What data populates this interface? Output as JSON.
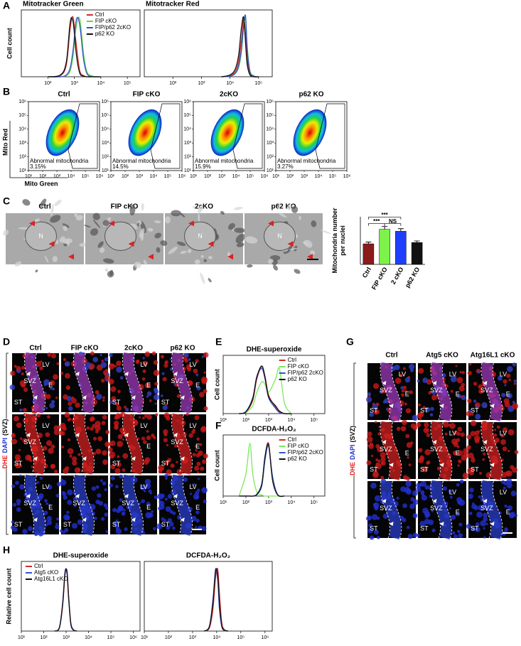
{
  "figure": {
    "panel_letters": [
      "A",
      "B",
      "C",
      "D",
      "E",
      "F",
      "G",
      "H"
    ],
    "flow_axis_labels": {
      "y": "Mito Red",
      "x": "Mito Green"
    },
    "em": {
      "titles": [
        "Ctrl",
        "FIP cKO",
        "2cKO",
        "p62 KO"
      ],
      "labels": [
        [
          "N"
        ],
        [],
        [
          "N"
        ],
        [
          "N"
        ]
      ]
    },
    "d": {
      "titles": [
        "Ctrl",
        "FIP cKO",
        "2cKO",
        "p62 KO"
      ],
      "side_label": [
        "DHE",
        "DAPI",
        "(SVZ)"
      ],
      "regions": [
        [
          [
            "LV",
            "E",
            "SVZ",
            "ST"
          ],
          [],
          [
            "LV",
            "E",
            "ST"
          ],
          [
            "LV",
            "SVZ",
            "E",
            "ST"
          ]
        ],
        [
          [
            "LV",
            "SVZ",
            "ST"
          ],
          [],
          [
            "LV",
            "ST",
            "E"
          ],
          [
            "SVZ",
            "LV",
            "ST",
            "E"
          ]
        ],
        [
          [
            "LV",
            "E",
            "SVZ",
            "ST"
          ],
          [
            "ST",
            "SVZ"
          ],
          [
            "LV",
            "ST",
            "SVZ",
            "E"
          ],
          [
            "SVZ",
            "LV",
            "ST",
            "E"
          ]
        ]
      ]
    },
    "g": {
      "titles": [
        "Ctrl",
        "Atg5 cKO",
        "Atg16L1 cKO"
      ],
      "side_label": [
        "DHE",
        "DAPI",
        "(SVZ)"
      ],
      "regions": [
        [
          [
            "SVZ",
            "E",
            "LV",
            "ST"
          ],
          [
            "SVZ",
            "E",
            "LV",
            "ST"
          ],
          [
            "SVZ",
            "LV",
            "E",
            "ST"
          ]
        ],
        [
          [
            "SVZ",
            "E",
            "ST"
          ],
          [
            "SVZ",
            "E",
            "LV",
            "ST"
          ],
          [
            "SVZ",
            "LV",
            "ST"
          ]
        ],
        [
          [
            "SVZ",
            "ST"
          ],
          [
            "SVZ",
            "E",
            "LV",
            "ST"
          ],
          [
            "SVZ",
            "E",
            "LV",
            "ST"
          ]
        ]
      ]
    }
  },
  "chart_data": [
    {
      "type": "line",
      "title": "Mitotracker Green",
      "y_label": "Cell count",
      "xscale": "log",
      "legend": "upper-right",
      "x": [
        100,
        300,
        500,
        700,
        900,
        1200,
        1600,
        2200,
        3000,
        5000,
        10000
      ],
      "series": [
        {
          "name": "Ctrl",
          "color": "#d42a2a",
          "values": [
            0,
            2,
            20,
            80,
            98,
            50,
            10,
            2,
            0,
            0,
            0
          ]
        },
        {
          "name": "FIP cKO",
          "color": "#5fd33f",
          "values": [
            0,
            0,
            2,
            10,
            35,
            85,
            95,
            40,
            8,
            1,
            0
          ]
        },
        {
          "name": "FIP/p62 2cKO",
          "color": "#2f55cc",
          "values": [
            0,
            0,
            3,
            15,
            45,
            95,
            85,
            30,
            5,
            0,
            0
          ]
        },
        {
          "name": "p62 KO",
          "color": "#111111",
          "values": [
            0,
            3,
            25,
            90,
            90,
            35,
            6,
            1,
            0,
            0,
            0
          ]
        }
      ],
      "xlim": [
        10,
        300000
      ],
      "ylim": [
        0,
        110
      ],
      "xticks": [
        {
          "value": 100,
          "label": "10²"
        },
        {
          "value": 1000,
          "label": "10³"
        },
        {
          "value": 10000,
          "label": "10⁴"
        },
        {
          "value": 100000,
          "label": "10⁵"
        }
      ]
    },
    {
      "type": "line",
      "title": "Mitotracker Red",
      "xscale": "log",
      "x": [
        5000,
        10000,
        15000,
        20000,
        25000,
        30000,
        35000,
        40000,
        50000,
        70000,
        100000
      ],
      "series": [
        {
          "color": "#d42a2a",
          "values": [
            0,
            2,
            8,
            25,
            60,
            95,
            70,
            30,
            5,
            0,
            0
          ]
        },
        {
          "color": "#5fd33f",
          "values": [
            0,
            1,
            5,
            15,
            40,
            80,
            95,
            50,
            10,
            1,
            0
          ]
        },
        {
          "color": "#2f55cc",
          "values": [
            0,
            1,
            5,
            18,
            45,
            85,
            100,
            45,
            8,
            1,
            0
          ]
        },
        {
          "color": "#111111",
          "values": [
            0,
            3,
            12,
            35,
            80,
            98,
            55,
            20,
            3,
            0,
            0
          ]
        }
      ],
      "xlim": [
        10,
        300000
      ],
      "ylim": [
        0,
        110
      ],
      "xticks": [
        {
          "value": 100,
          "label": "10²"
        },
        {
          "value": 1000,
          "label": "10³"
        },
        {
          "value": 10000,
          "label": "10⁴"
        },
        {
          "value": 100000,
          "label": "10⁵"
        }
      ]
    },
    {
      "type": "density",
      "title": "Ctrl",
      "annotation": "Abnormal mitochondria",
      "value_label": "3.15%",
      "xscale": "log",
      "yscale": "log",
      "xlim": [
        10,
        1000000
      ],
      "ylim": [
        10,
        1000000
      ],
      "xticks": [
        {
          "value": 10,
          "label": "10¹"
        },
        {
          "value": 100,
          "label": "10²"
        },
        {
          "value": 1000,
          "label": "10³"
        },
        {
          "value": 10000,
          "label": "10⁴"
        },
        {
          "value": 100000,
          "label": "10⁵"
        },
        {
          "value": 1000000,
          "label": "10⁶"
        }
      ],
      "yticks": [
        {
          "value": 10,
          "label": "10¹"
        },
        {
          "value": 100,
          "label": "10²"
        },
        {
          "value": 1000,
          "label": "10³"
        },
        {
          "value": 10000,
          "label": "10⁴"
        },
        {
          "value": 100000,
          "label": "10⁵"
        },
        {
          "value": 1000000,
          "label": "10⁶"
        }
      ]
    },
    {
      "type": "density",
      "title": "FIP cKO",
      "annotation": "Abnormal mitochondria",
      "value_label": "14.5%",
      "xscale": "log",
      "yscale": "log",
      "xlim": [
        10,
        1000000
      ],
      "ylim": [
        10,
        1000000
      ],
      "xticks": [
        {
          "value": 10,
          "label": "10¹"
        },
        {
          "value": 100,
          "label": "10²"
        },
        {
          "value": 1000,
          "label": "10³"
        },
        {
          "value": 10000,
          "label": "10⁴"
        },
        {
          "value": 100000,
          "label": "10⁵"
        },
        {
          "value": 1000000,
          "label": "10⁶"
        }
      ],
      "yticks": [
        {
          "value": 10,
          "label": "10¹"
        },
        {
          "value": 100,
          "label": "10²"
        },
        {
          "value": 1000,
          "label": "10³"
        },
        {
          "value": 10000,
          "label": "10⁴"
        },
        {
          "value": 100000,
          "label": "10⁵"
        },
        {
          "value": 1000000,
          "label": "10⁶"
        }
      ]
    },
    {
      "type": "density",
      "title": "2cKO",
      "annotation": "Abnormal mitochondria",
      "value_label": "15.9%",
      "xscale": "log",
      "yscale": "log",
      "xlim": [
        10,
        1000000
      ],
      "ylim": [
        10,
        1000000
      ],
      "xticks": [
        {
          "value": 10,
          "label": "10¹"
        },
        {
          "value": 100,
          "label": "10²"
        },
        {
          "value": 1000,
          "label": "10³"
        },
        {
          "value": 10000,
          "label": "10⁴"
        },
        {
          "value": 100000,
          "label": "10⁵"
        },
        {
          "value": 1000000,
          "label": "10⁶"
        }
      ],
      "yticks": [
        {
          "value": 10,
          "label": "10¹"
        },
        {
          "value": 100,
          "label": "10²"
        },
        {
          "value": 1000,
          "label": "10³"
        },
        {
          "value": 10000,
          "label": "10⁴"
        },
        {
          "value": 100000,
          "label": "10⁵"
        },
        {
          "value": 1000000,
          "label": "10⁶"
        }
      ]
    },
    {
      "type": "density",
      "title": "p62 KO",
      "annotation": "Abnormal mitochondria",
      "value_label": "3.27%",
      "xscale": "log",
      "yscale": "log",
      "xlim": [
        10,
        1000000
      ],
      "ylim": [
        10,
        1000000
      ],
      "xticks": [
        {
          "value": 10,
          "label": "10¹"
        },
        {
          "value": 100,
          "label": "10²"
        },
        {
          "value": 1000,
          "label": "10³"
        },
        {
          "value": 10000,
          "label": "10⁴"
        },
        {
          "value": 100000,
          "label": "10⁵"
        },
        {
          "value": 1000000,
          "label": "10⁶"
        }
      ],
      "yticks": [
        {
          "value": 10,
          "label": "10¹"
        },
        {
          "value": 100,
          "label": "10²"
        },
        {
          "value": 1000,
          "label": "10³"
        },
        {
          "value": 10000,
          "label": "10⁴"
        },
        {
          "value": 100000,
          "label": "10⁵"
        },
        {
          "value": 1000000,
          "label": "10⁶"
        }
      ]
    },
    {
      "type": "bar",
      "y_label": [
        "Mitochondria number",
        "per nuclei"
      ],
      "categories": [
        "Ctrl",
        "FIP cKO",
        "2 cKO",
        "p62 KO"
      ],
      "values": [
        9.5,
        16.2,
        15.3,
        10.1
      ],
      "errors": [
        0.8,
        1.3,
        1.2,
        0.7
      ],
      "colors": [
        "#8b1a1a",
        "#7cf24a",
        "#1f3fff",
        "#111111"
      ],
      "ylim": [
        0,
        22
      ],
      "significance": [
        {
          "from": 0,
          "to": 1,
          "label": "***"
        },
        {
          "from": 0,
          "to": 2,
          "label": "***"
        },
        {
          "from": 1,
          "to": 2,
          "label": "NS"
        }
      ]
    },
    {
      "type": "line",
      "title": "DHE-superoxide",
      "y_label": "Cell count",
      "xscale": "log",
      "legend": "upper-right",
      "x": [
        50,
        100,
        200,
        300,
        500,
        700,
        1000,
        2000,
        3000,
        5000,
        10000
      ],
      "series": [
        {
          "name": "Ctrl",
          "color": "#d42a2a",
          "values": [
            0,
            3,
            25,
            65,
            88,
            70,
            35,
            12,
            3,
            0,
            0
          ]
        },
        {
          "name": "FIP cKO",
          "color": "#7ce85a",
          "values": [
            0,
            2,
            15,
            40,
            60,
            55,
            40,
            65,
            85,
            20,
            0
          ]
        },
        {
          "name": "FIP/p62 2cKO",
          "color": "#2f55cc",
          "values": [
            0,
            4,
            30,
            70,
            85,
            65,
            30,
            10,
            2,
            0,
            0
          ]
        },
        {
          "name": "p62 KO",
          "color": "#111111",
          "values": [
            0,
            3,
            28,
            68,
            90,
            68,
            32,
            15,
            5,
            0,
            0
          ]
        }
      ],
      "xlim": [
        10,
        300000
      ],
      "ylim": [
        0,
        110
      ],
      "xticks": [
        {
          "value": 10,
          "label": "10¹"
        },
        {
          "value": 100,
          "label": "10²"
        },
        {
          "value": 1000,
          "label": "10³"
        },
        {
          "value": 10000,
          "label": "10⁴"
        },
        {
          "value": 100000,
          "label": "10⁵"
        }
      ]
    },
    {
      "type": "line",
      "title": "DCFDA-H₂O₂",
      "y_label": "Cell count",
      "xscale": "log",
      "legend": "upper-right",
      "x": [
        50,
        100,
        150,
        200,
        300,
        500,
        700,
        1000,
        1500,
        2500,
        5000
      ],
      "series": [
        {
          "name": "Ctrl",
          "color": "#d42a2a",
          "values": [
            0,
            0,
            0,
            0,
            2,
            20,
            70,
            95,
            30,
            2,
            0
          ]
        },
        {
          "name": "FIP cKO",
          "color": "#7ce85a",
          "values": [
            0,
            40,
            95,
            40,
            8,
            2,
            0,
            0,
            0,
            0,
            0
          ]
        },
        {
          "name": "FIP/p62 2cKO",
          "color": "#2f55cc",
          "values": [
            0,
            0,
            0,
            0,
            2,
            18,
            65,
            90,
            35,
            3,
            0
          ]
        },
        {
          "name": "p62 KO",
          "color": "#111111",
          "values": [
            0,
            0,
            0,
            0,
            3,
            22,
            72,
            92,
            28,
            2,
            0
          ]
        }
      ],
      "xlim": [
        10,
        300000
      ],
      "ylim": [
        0,
        110
      ],
      "xticks": [
        {
          "value": 10,
          "label": "10¹"
        },
        {
          "value": 100,
          "label": "10²"
        },
        {
          "value": 1000,
          "label": "10³"
        },
        {
          "value": 10000,
          "label": "10⁴"
        },
        {
          "value": 100000,
          "label": "10⁵"
        }
      ]
    },
    {
      "type": "line",
      "title": "DHE-superoxide",
      "y_label": "Relative cell count",
      "xscale": "log",
      "legend": "upper-left",
      "x": [
        300,
        500,
        700,
        900,
        1100,
        1300,
        1600,
        2000,
        3000
      ],
      "series": [
        {
          "name": "Ctrl",
          "color": "#d42a2a",
          "values": [
            0,
            5,
            40,
            90,
            95,
            55,
            15,
            3,
            0
          ]
        },
        {
          "name": "Atg5 cKO",
          "color": "#2f55cc",
          "values": [
            0,
            6,
            45,
            95,
            90,
            50,
            12,
            2,
            0
          ]
        },
        {
          "name": "Atg16L1 cKO",
          "color": "#111111",
          "values": [
            0,
            5,
            42,
            92,
            93,
            52,
            14,
            3,
            0
          ]
        }
      ],
      "xlim": [
        10,
        2000000
      ],
      "ylim": [
        0,
        110
      ],
      "xticks": [
        {
          "value": 10,
          "label": "10¹"
        },
        {
          "value": 100,
          "label": "10²"
        },
        {
          "value": 1000,
          "label": "10³"
        },
        {
          "value": 10000,
          "label": "10⁴"
        },
        {
          "value": 100000,
          "label": "10⁵"
        },
        {
          "value": 1000000,
          "label": "10⁶"
        }
      ]
    },
    {
      "type": "line",
      "title": "DCFDA-H₂O₂",
      "xscale": "log",
      "x": [
        3000,
        5000,
        7000,
        9000,
        11000,
        13000,
        16000,
        20000,
        30000
      ],
      "series": [
        {
          "color": "#d42a2a",
          "values": [
            0,
            5,
            35,
            85,
            98,
            60,
            15,
            3,
            0
          ]
        },
        {
          "color": "#2f55cc",
          "values": [
            0,
            8,
            50,
            98,
            80,
            35,
            8,
            1,
            0
          ]
        },
        {
          "color": "#111111",
          "values": [
            0,
            7,
            45,
            95,
            88,
            45,
            10,
            2,
            0
          ]
        }
      ],
      "xlim": [
        10,
        2000000
      ],
      "ylim": [
        0,
        110
      ],
      "xticks": [
        {
          "value": 10,
          "label": "10¹"
        },
        {
          "value": 100,
          "label": "10²"
        },
        {
          "value": 1000,
          "label": "10³"
        },
        {
          "value": 10000,
          "label": "10⁴"
        },
        {
          "value": 100000,
          "label": "10⁵"
        },
        {
          "value": 1000000,
          "label": "10⁶"
        }
      ]
    }
  ]
}
